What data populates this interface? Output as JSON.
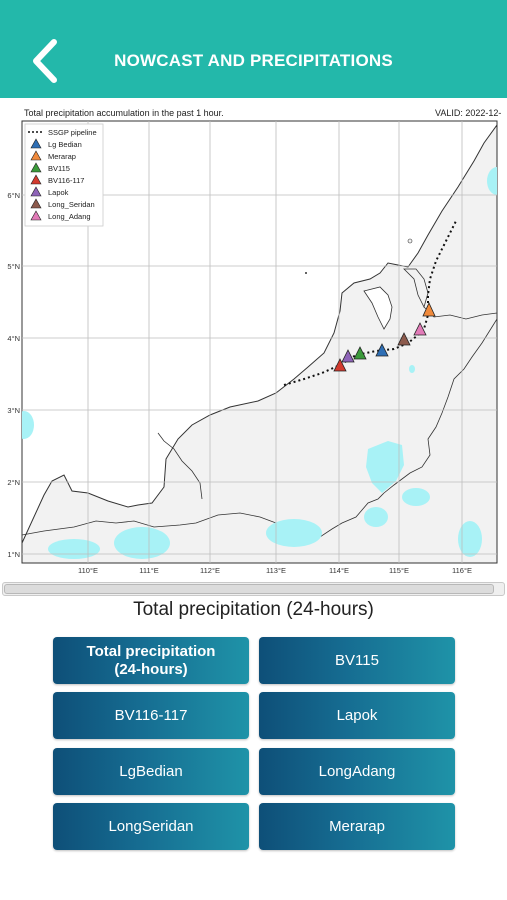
{
  "header": {
    "title": "NOWCAST AND PRECIPITATIONS",
    "back_icon": "chevron-left-icon"
  },
  "map": {
    "caption_left": "Total precipitation accumulation in the past 1 hour.",
    "caption_right": "VALID: 2022-12-",
    "legend": [
      {
        "label": "SSGP pipeline",
        "symbol": "dotted-line",
        "color": "#000000"
      },
      {
        "label": "Lg Bedian",
        "symbol": "triangle",
        "color": "#2f6fb5"
      },
      {
        "label": "Merarap",
        "symbol": "triangle",
        "color": "#f08a3c"
      },
      {
        "label": "BV115",
        "symbol": "triangle",
        "color": "#3a9a3a"
      },
      {
        "label": "BV116-117",
        "symbol": "triangle",
        "color": "#d23a2e"
      },
      {
        "label": "Lapok",
        "symbol": "triangle",
        "color": "#8e64b8"
      },
      {
        "label": "Long_Seridan",
        "symbol": "triangle",
        "color": "#8c5a4c"
      },
      {
        "label": "Long_Adang",
        "symbol": "triangle",
        "color": "#e27bb8"
      }
    ],
    "lat_labels": [
      "6°N",
      "5°N",
      "4°N",
      "3°N",
      "2°N",
      "1°N"
    ],
    "lon_labels": [
      "110°E",
      "111°E",
      "112°E",
      "113°E",
      "114°E",
      "115°E",
      "116°E"
    ],
    "colors": {
      "land": "#f2f2f2",
      "precip": "#a8f2f6",
      "grid": "#bdbdbd"
    }
  },
  "section_title": "Total precipitation (24-hours)",
  "buttons": [
    {
      "label": "Total precipitation\n(24-hours)",
      "active": true
    },
    {
      "label": "BV115",
      "active": false
    },
    {
      "label": "BV116-117",
      "active": false
    },
    {
      "label": "Lapok",
      "active": false
    },
    {
      "label": "LgBedian",
      "active": false
    },
    {
      "label": "LongAdang",
      "active": false
    },
    {
      "label": "LongSeridan",
      "active": false
    },
    {
      "label": "Merarap",
      "active": false
    }
  ]
}
